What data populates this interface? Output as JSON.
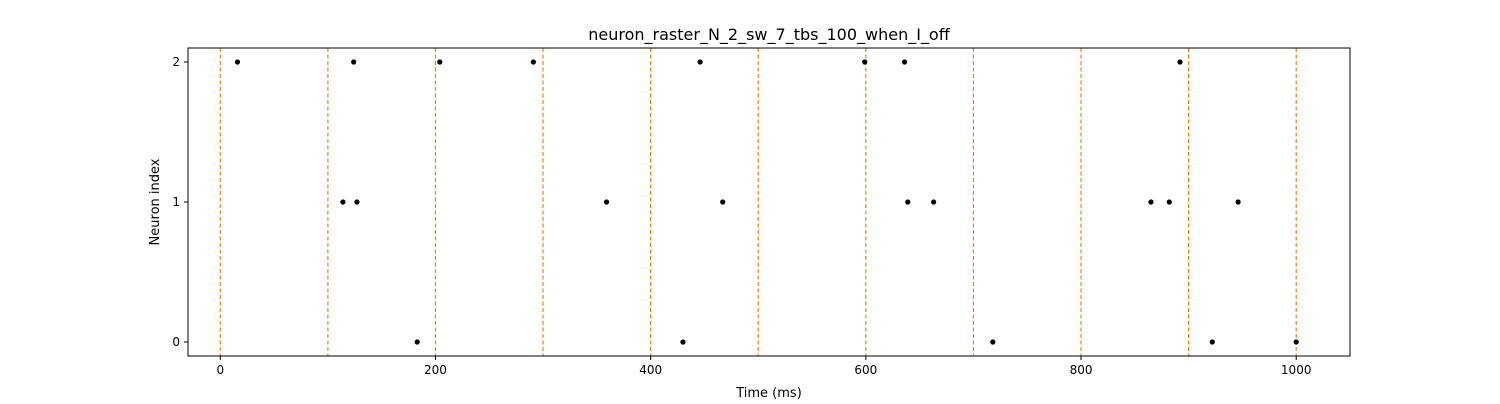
{
  "chart_data": {
    "type": "scatter",
    "title": "neuron_raster_N_2_sw_7_tbs_100_when_I_off",
    "xlabel": "Time (ms)",
    "ylabel": "Neuron index",
    "xlim": [
      -30,
      1050
    ],
    "ylim": [
      -0.1,
      2.1
    ],
    "x_ticks": [
      0,
      200,
      400,
      600,
      800,
      1000
    ],
    "y_ticks": [
      0,
      1,
      2
    ],
    "grid": false,
    "legend": "none",
    "marker_color": "#000000",
    "boundary_color": "#ff7f0e",
    "boundaries": [
      0,
      100,
      200,
      300,
      400,
      500,
      600,
      700,
      800,
      900,
      1000
    ],
    "spikes": [
      {
        "x": 16,
        "y": 2
      },
      {
        "x": 124,
        "y": 2
      },
      {
        "x": 204,
        "y": 2
      },
      {
        "x": 291,
        "y": 2
      },
      {
        "x": 446,
        "y": 2
      },
      {
        "x": 599,
        "y": 2
      },
      {
        "x": 636,
        "y": 2
      },
      {
        "x": 892,
        "y": 2
      },
      {
        "x": 114,
        "y": 1
      },
      {
        "x": 127,
        "y": 1
      },
      {
        "x": 359,
        "y": 1
      },
      {
        "x": 467,
        "y": 1
      },
      {
        "x": 639,
        "y": 1
      },
      {
        "x": 663,
        "y": 1
      },
      {
        "x": 865,
        "y": 1
      },
      {
        "x": 882,
        "y": 1
      },
      {
        "x": 946,
        "y": 1
      },
      {
        "x": 183,
        "y": 0
      },
      {
        "x": 430,
        "y": 0
      },
      {
        "x": 718,
        "y": 0
      },
      {
        "x": 922,
        "y": 0
      },
      {
        "x": 1000,
        "y": 0
      }
    ]
  }
}
